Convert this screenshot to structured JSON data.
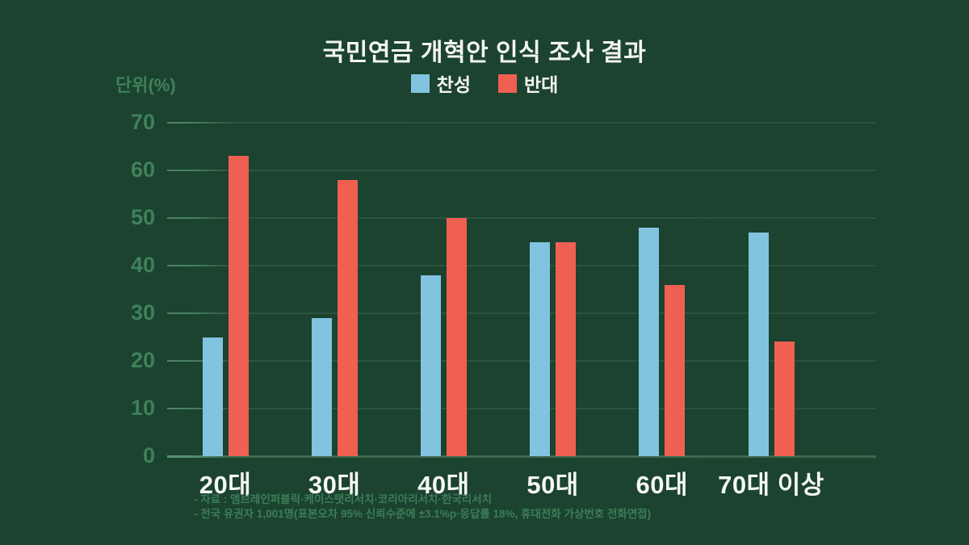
{
  "page": {
    "background_color": "#1b432f"
  },
  "header": {
    "title": "국민연금 개혁안 인식 조사 결과",
    "unit_label": "단위(%)"
  },
  "chart_data": {
    "type": "bar",
    "title": "국민연금 개혁안 인식 조사 결과",
    "unit": "단위(%)",
    "categories": [
      "20대",
      "30대",
      "40대",
      "50대",
      "60대",
      "70대 이상"
    ],
    "series": [
      {
        "name": "찬성",
        "color": "#82c3e0",
        "values": [
          25,
          29,
          38,
          45,
          48,
          47
        ]
      },
      {
        "name": "반대",
        "color": "#ef6053",
        "values": [
          63,
          58,
          50,
          45,
          36,
          24
        ]
      }
    ],
    "ylim": [
      0,
      70
    ],
    "ytick_step": 10,
    "yticks": [
      0,
      10,
      20,
      30,
      40,
      50,
      60,
      70
    ],
    "grid": true,
    "legend_position": "top-center"
  },
  "footnotes": {
    "line1": "- 자료 : 엠브레인퍼블릭·케이스탯리서치·코리아리서치·한국리서치",
    "line2": "- 전국 유권자 1,001명(표본오차 95% 신뢰수준에 ±3.1%p·응답률 18%, 휴대전화 가상번호 전화면접)"
  },
  "colors": {
    "background": "#1b432f",
    "gridline": "#2c5540",
    "axis_text": "#3f8159",
    "title_text": "#f3f5f1",
    "bar_agree": "#82c3e0",
    "bar_oppose": "#ef6053"
  }
}
